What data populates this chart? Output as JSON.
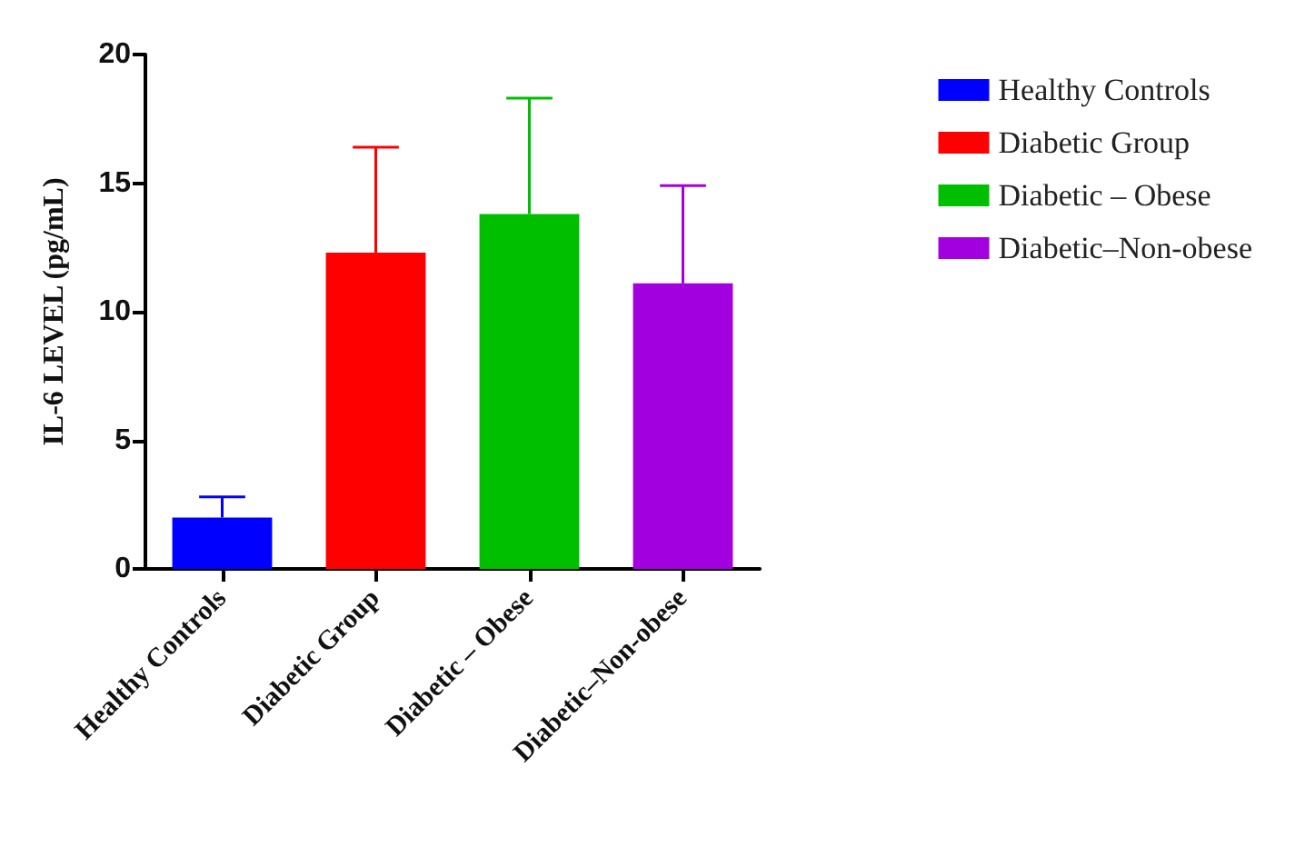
{
  "chart_data": {
    "type": "bar",
    "ylabel": "IL-6 LEVEL (pg/mL)",
    "categories": [
      "Healthy Controls",
      "Diabetic Group",
      "Diabetic – Obese",
      "Diabetic–Non-obese"
    ],
    "series": [
      {
        "name": "Healthy Controls",
        "color": "#0000ff",
        "values": [
          2.0,
          null,
          null,
          null
        ],
        "errors": [
          [
            2.0,
            2.8
          ],
          null,
          null,
          null
        ]
      },
      {
        "name": "Diabetic Group",
        "color": "#ff0000",
        "values": [
          null,
          12.3,
          null,
          null
        ],
        "errors": [
          null,
          [
            12.3,
            16.4
          ],
          null,
          null
        ]
      },
      {
        "name": "Diabetic – Obese",
        "color": "#00bf00",
        "values": [
          null,
          null,
          13.8,
          null
        ],
        "errors": [
          null,
          null,
          [
            13.8,
            18.3
          ],
          null
        ]
      },
      {
        "name": "Diabetic–Non-obese",
        "color": "#a300e0",
        "values": [
          null,
          null,
          null,
          11.1
        ],
        "errors": [
          null,
          null,
          null,
          [
            11.1,
            14.9
          ]
        ]
      }
    ],
    "ylim": [
      0,
      20
    ],
    "yticks": [
      0,
      5,
      10,
      15,
      20
    ],
    "grid": false,
    "legend": "top right"
  }
}
